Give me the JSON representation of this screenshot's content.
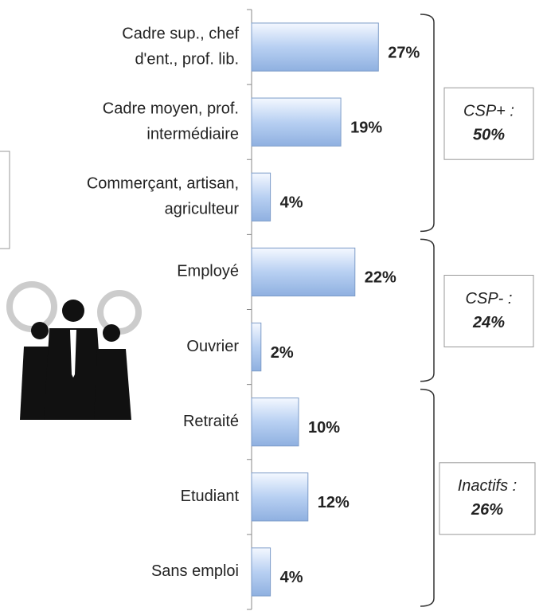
{
  "chart_data": {
    "type": "barh",
    "categories": [
      [
        "Cadre sup., chef",
        "d'ent., prof. lib."
      ],
      [
        "Cadre moyen, prof.",
        "intermédiaire"
      ],
      [
        "Commerçant, artisan,",
        "agriculteur"
      ],
      [
        "Employé"
      ],
      [
        "Ouvrier"
      ],
      [
        "Retraité"
      ],
      [
        "Etudiant"
      ],
      [
        "Sans emploi"
      ]
    ],
    "values": [
      27,
      19,
      4,
      22,
      2,
      10,
      12,
      4
    ],
    "value_labels": [
      "27%",
      "19%",
      "4%",
      "22%",
      "2%",
      "10%",
      "12%",
      "4%"
    ],
    "xlim": [
      0,
      60
    ],
    "color": "#a9c6f0",
    "groups": [
      {
        "label": "CSP+ :",
        "total": "50%"
      },
      {
        "label": "CSP- :",
        "total": "24%"
      },
      {
        "label": "Inactifs :",
        "total": "26%"
      }
    ]
  }
}
